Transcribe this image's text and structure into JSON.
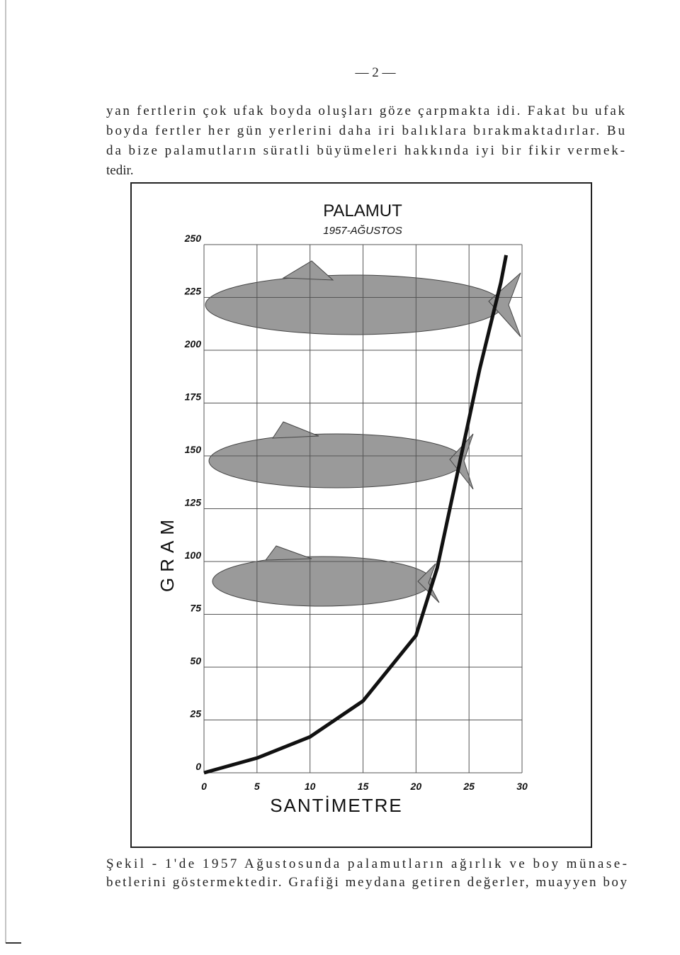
{
  "page_number": "— 2 —",
  "paragraph_lines": [
    "yan fertlerin çok ufak boyda oluşları göze çarpmakta idi. Fakat bu ufak",
    "boyda fertler her gün yerlerini daha iri balıklara bırakmaktadırlar. Bu",
    "da bize palamutların süratli büyümeleri hakkında iyi bir fikir vermek-",
    "tedir."
  ],
  "chart_data": {
    "type": "line",
    "title": "PALAMUT",
    "subtitle": "1957-AĞUSTOS",
    "x_label": "SANTİMETRE",
    "y_label": "GRAM",
    "x": [
      0,
      5,
      10,
      15,
      20,
      22,
      24,
      26,
      28,
      28.5
    ],
    "values": [
      0,
      7,
      17,
      34,
      65,
      97,
      144,
      191,
      232,
      245
    ],
    "color": "#111111",
    "xlim": [
      0,
      30
    ],
    "xticks": [
      0,
      5,
      10,
      15,
      20,
      25,
      30
    ],
    "ylim": [
      0,
      250
    ],
    "yticks": [
      0,
      25,
      50,
      75,
      100,
      125,
      150,
      175,
      200,
      225,
      250
    ],
    "grid": true
  },
  "caption_lines": [
    "Şekil - 1'de 1957 Ağustosunda palamutların ağırlık ve boy münase-",
    "betlerini göstermektedir. Grafiği meydana getiren değerler, muayyen boy"
  ]
}
